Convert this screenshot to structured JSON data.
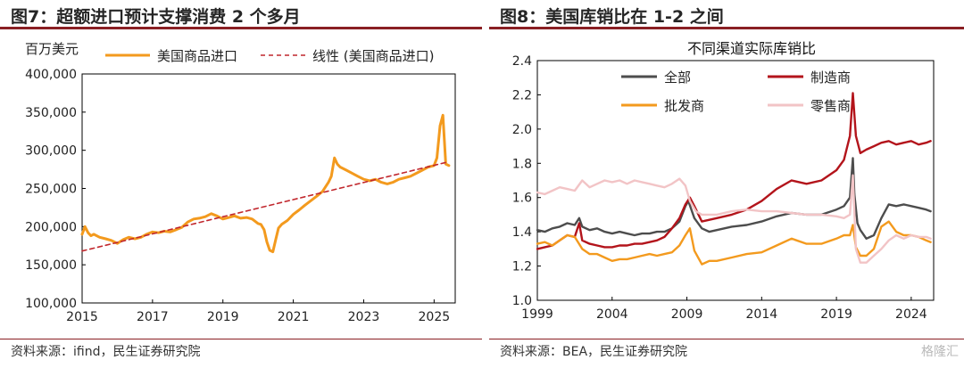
{
  "left": {
    "figure_title": "图7：超额进口预计支撑消费 2 个多月",
    "source": "资料来源：ifind，民生证券研究院"
  },
  "right": {
    "figure_title": "图8：美国库销比在 1-2 之间",
    "source": "资料来源：BEA，民生证券研究院"
  },
  "watermark": "格隆汇",
  "chart_data": [
    {
      "type": "line",
      "title": "",
      "ylabel": "百万美元",
      "xlabel": "",
      "xlim": [
        2015,
        2025.6
      ],
      "ylim": [
        100000,
        400000
      ],
      "x_ticks": [
        2015,
        2017,
        2019,
        2021,
        2023,
        2025
      ],
      "y_ticks": [
        100000,
        150000,
        200000,
        250000,
        300000,
        350000,
        400000
      ],
      "y_tick_labels": [
        "100,000",
        "150,000",
        "200,000",
        "250,000",
        "300,000",
        "350,000",
        "400,000"
      ],
      "legend_position": "top",
      "grid": false,
      "series": [
        {
          "name": "美国商品进口",
          "color": "#f39a1e",
          "style": "solid",
          "x": [
            2015.0,
            2015.08,
            2015.17,
            2015.25,
            2015.33,
            2015.5,
            2015.67,
            2015.83,
            2016.0,
            2016.17,
            2016.33,
            2016.5,
            2016.67,
            2016.83,
            2017.0,
            2017.17,
            2017.33,
            2017.5,
            2017.67,
            2017.83,
            2018.0,
            2018.17,
            2018.33,
            2018.5,
            2018.67,
            2018.83,
            2019.0,
            2019.17,
            2019.33,
            2019.5,
            2019.67,
            2019.83,
            2020.0,
            2020.08,
            2020.17,
            2020.25,
            2020.33,
            2020.42,
            2020.5,
            2020.58,
            2020.67,
            2020.83,
            2021.0,
            2021.17,
            2021.33,
            2021.5,
            2021.67,
            2021.83,
            2022.0,
            2022.08,
            2022.17,
            2022.25,
            2022.33,
            2022.5,
            2022.67,
            2022.83,
            2023.0,
            2023.17,
            2023.33,
            2023.5,
            2023.67,
            2023.83,
            2024.0,
            2024.17,
            2024.33,
            2024.5,
            2024.67,
            2024.83,
            2025.0,
            2025.08,
            2025.17,
            2025.25,
            2025.33,
            2025.42
          ],
          "y": [
            190000,
            200000,
            192000,
            188000,
            190000,
            186000,
            184000,
            182000,
            178000,
            183000,
            186000,
            184000,
            186000,
            190000,
            193000,
            192000,
            194000,
            193000,
            196000,
            199000,
            206000,
            210000,
            211000,
            213000,
            217000,
            214000,
            210000,
            212000,
            214000,
            211000,
            212000,
            210000,
            204000,
            203000,
            196000,
            180000,
            169000,
            167000,
            183000,
            198000,
            203000,
            208000,
            216000,
            222000,
            228000,
            234000,
            240000,
            246000,
            258000,
            266000,
            290000,
            282000,
            278000,
            274000,
            270000,
            266000,
            262000,
            260000,
            262000,
            258000,
            256000,
            258000,
            262000,
            264000,
            266000,
            270000,
            274000,
            278000,
            280000,
            290000,
            332000,
            346000,
            282000,
            280000
          ]
        },
        {
          "name": "线性 (美国商品进口)",
          "color": "#c1272d",
          "style": "dashed",
          "x": [
            2015.0,
            2025.42
          ],
          "y": [
            168000,
            285000
          ]
        }
      ]
    },
    {
      "type": "line",
      "title": "不同渠道实际库销比",
      "xlabel": "",
      "ylabel": "",
      "xlim": [
        1999,
        2025.5
      ],
      "ylim": [
        1.0,
        2.4
      ],
      "x_ticks": [
        1999,
        2004,
        2009,
        2014,
        2019,
        2024
      ],
      "y_ticks": [
        1.0,
        1.2,
        1.4,
        1.6,
        1.8,
        2.0,
        2.2,
        2.4
      ],
      "y_tick_labels": [
        "1.0",
        "1.2",
        "1.4",
        "1.6",
        "1.8",
        "2.0",
        "2.2",
        "2.4"
      ],
      "legend_position": "top",
      "grid": false,
      "series": [
        {
          "name": "全部",
          "color": "#4d4d4d",
          "x": [
            1999.0,
            1999.5,
            2000.0,
            2000.5,
            2001.0,
            2001.5,
            2001.8,
            2002.0,
            2002.5,
            2003.0,
            2003.5,
            2004.0,
            2004.5,
            2005.0,
            2005.5,
            2006.0,
            2006.5,
            2007.0,
            2007.5,
            2008.0,
            2008.5,
            2008.9,
            2009.1,
            2009.5,
            2010.0,
            2010.5,
            2011.0,
            2012.0,
            2013.0,
            2014.0,
            2015.0,
            2016.0,
            2017.0,
            2018.0,
            2019.0,
            2019.5,
            2019.9,
            2020.1,
            2020.2,
            2020.4,
            2020.6,
            2021.0,
            2021.5,
            2022.0,
            2022.5,
            2023.0,
            2023.5,
            2024.0,
            2024.5,
            2025.0,
            2025.3
          ],
          "y": [
            1.41,
            1.4,
            1.42,
            1.43,
            1.45,
            1.44,
            1.48,
            1.43,
            1.41,
            1.42,
            1.4,
            1.39,
            1.4,
            1.39,
            1.38,
            1.39,
            1.39,
            1.4,
            1.4,
            1.42,
            1.46,
            1.55,
            1.58,
            1.48,
            1.42,
            1.4,
            1.41,
            1.43,
            1.44,
            1.46,
            1.49,
            1.51,
            1.5,
            1.5,
            1.53,
            1.55,
            1.6,
            1.83,
            1.62,
            1.45,
            1.41,
            1.36,
            1.38,
            1.48,
            1.56,
            1.55,
            1.56,
            1.55,
            1.54,
            1.53,
            1.52
          ]
        },
        {
          "name": "制造商",
          "color": "#b3141b",
          "x": [
            1999.0,
            1999.5,
            2000.0,
            2000.5,
            2001.0,
            2001.5,
            2001.8,
            2002.0,
            2002.5,
            2003.0,
            2003.5,
            2004.0,
            2004.5,
            2005.0,
            2005.5,
            2006.0,
            2006.5,
            2007.0,
            2007.5,
            2008.0,
            2008.5,
            2008.9,
            2009.2,
            2009.5,
            2010.0,
            2011.0,
            2012.0,
            2013.0,
            2014.0,
            2015.0,
            2016.0,
            2017.0,
            2018.0,
            2019.0,
            2019.5,
            2019.9,
            2020.1,
            2020.3,
            2020.6,
            2021.0,
            2021.5,
            2022.0,
            2022.5,
            2023.0,
            2023.5,
            2024.0,
            2024.5,
            2025.0,
            2025.3
          ],
          "y": [
            1.3,
            1.31,
            1.32,
            1.35,
            1.38,
            1.37,
            1.45,
            1.35,
            1.33,
            1.32,
            1.31,
            1.31,
            1.32,
            1.32,
            1.33,
            1.33,
            1.34,
            1.35,
            1.37,
            1.42,
            1.48,
            1.56,
            1.6,
            1.55,
            1.46,
            1.48,
            1.5,
            1.53,
            1.58,
            1.65,
            1.7,
            1.68,
            1.7,
            1.76,
            1.82,
            1.96,
            2.21,
            1.96,
            1.86,
            1.88,
            1.9,
            1.92,
            1.93,
            1.91,
            1.92,
            1.93,
            1.91,
            1.92,
            1.93
          ]
        },
        {
          "name": "批发商",
          "color": "#f39a1e",
          "x": [
            1999.0,
            1999.5,
            2000.0,
            2000.5,
            2001.0,
            2001.5,
            2002.0,
            2002.5,
            2003.0,
            2003.5,
            2004.0,
            2004.5,
            2005.0,
            2005.5,
            2006.0,
            2006.5,
            2007.0,
            2007.5,
            2008.0,
            2008.5,
            2008.9,
            2009.2,
            2009.5,
            2010.0,
            2010.5,
            2011.0,
            2012.0,
            2013.0,
            2014.0,
            2015.0,
            2016.0,
            2017.0,
            2018.0,
            2019.0,
            2019.5,
            2019.9,
            2020.1,
            2020.3,
            2020.6,
            2021.0,
            2021.5,
            2022.0,
            2022.5,
            2023.0,
            2023.5,
            2024.0,
            2024.5,
            2025.0,
            2025.3
          ],
          "y": [
            1.33,
            1.34,
            1.32,
            1.35,
            1.38,
            1.37,
            1.3,
            1.27,
            1.27,
            1.25,
            1.23,
            1.24,
            1.24,
            1.25,
            1.26,
            1.27,
            1.26,
            1.27,
            1.28,
            1.32,
            1.38,
            1.42,
            1.29,
            1.21,
            1.23,
            1.23,
            1.25,
            1.27,
            1.28,
            1.32,
            1.36,
            1.33,
            1.33,
            1.36,
            1.38,
            1.38,
            1.44,
            1.31,
            1.26,
            1.26,
            1.3,
            1.43,
            1.46,
            1.4,
            1.38,
            1.38,
            1.37,
            1.35,
            1.34
          ]
        },
        {
          "name": "零售商",
          "color": "#f2c4c6",
          "x": [
            1999.0,
            1999.5,
            2000.0,
            2000.5,
            2001.0,
            2001.5,
            2002.0,
            2002.5,
            2003.0,
            2003.5,
            2004.0,
            2004.5,
            2005.0,
            2005.5,
            2006.0,
            2006.5,
            2007.0,
            2007.5,
            2008.0,
            2008.5,
            2008.9,
            2009.2,
            2009.6,
            2010.0,
            2011.0,
            2012.0,
            2013.0,
            2014.0,
            2015.0,
            2016.0,
            2017.0,
            2018.0,
            2019.0,
            2019.5,
            2019.9,
            2020.1,
            2020.3,
            2020.6,
            2021.0,
            2021.5,
            2022.0,
            2022.5,
            2023.0,
            2023.5,
            2024.0,
            2024.5,
            2025.0,
            2025.3
          ],
          "y": [
            1.63,
            1.62,
            1.64,
            1.66,
            1.65,
            1.64,
            1.7,
            1.66,
            1.68,
            1.7,
            1.69,
            1.7,
            1.68,
            1.7,
            1.69,
            1.68,
            1.67,
            1.66,
            1.68,
            1.71,
            1.67,
            1.58,
            1.52,
            1.5,
            1.5,
            1.52,
            1.53,
            1.52,
            1.52,
            1.51,
            1.5,
            1.5,
            1.49,
            1.48,
            1.5,
            1.73,
            1.3,
            1.22,
            1.22,
            1.26,
            1.3,
            1.35,
            1.38,
            1.36,
            1.38,
            1.37,
            1.37,
            1.36
          ]
        }
      ]
    }
  ]
}
